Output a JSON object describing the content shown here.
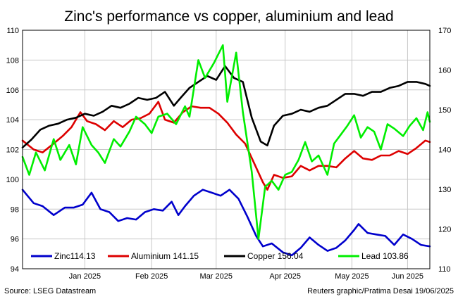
{
  "chart_data": {
    "type": "line",
    "title": "Zinc's performance vs copper, aluminium and lead",
    "xlabel": "",
    "ylabel": "",
    "y_left_ticks": [
      94,
      96,
      98,
      100,
      102,
      104,
      106,
      108,
      110
    ],
    "y_right_ticks": [
      110,
      120,
      130,
      140,
      150,
      160,
      170
    ],
    "ylim_left": [
      94,
      110
    ],
    "ylim_right": [
      110,
      170
    ],
    "x_start": "2024-12-18",
    "x_end": "2025-06-19",
    "x_ticks": [
      {
        "label": "Jan 2025",
        "date": "2025-01-15"
      },
      {
        "label": "Feb 2025",
        "date": "2025-02-14"
      },
      {
        "label": "Mar 2025",
        "date": "2025-03-15"
      },
      {
        "label": "Apr 2025",
        "date": "2025-04-15"
      },
      {
        "label": "May 2025",
        "date": "2025-05-15"
      },
      {
        "label": "Jun 2025",
        "date": "2025-06-09"
      }
    ],
    "grid": true,
    "legend_position": "bottom",
    "series": [
      {
        "name": "Zinc114.13",
        "axis": "left",
        "color": "#0000cc",
        "points": [
          [
            "2024-12-18",
            99.3
          ],
          [
            "2024-12-23",
            98.4
          ],
          [
            "2024-12-27",
            98.2
          ],
          [
            "2025-01-01",
            97.6
          ],
          [
            "2025-01-06",
            98.1
          ],
          [
            "2025-01-10",
            98.1
          ],
          [
            "2025-01-14",
            98.3
          ],
          [
            "2025-01-18",
            99.1
          ],
          [
            "2025-01-22",
            98.0
          ],
          [
            "2025-01-26",
            97.8
          ],
          [
            "2025-01-30",
            97.2
          ],
          [
            "2025-02-03",
            97.4
          ],
          [
            "2025-02-07",
            97.3
          ],
          [
            "2025-02-11",
            97.8
          ],
          [
            "2025-02-15",
            98.0
          ],
          [
            "2025-02-19",
            97.9
          ],
          [
            "2025-02-23",
            98.5
          ],
          [
            "2025-02-26",
            97.6
          ],
          [
            "2025-03-01",
            98.2
          ],
          [
            "2025-03-05",
            98.9
          ],
          [
            "2025-03-09",
            99.3
          ],
          [
            "2025-03-13",
            99.1
          ],
          [
            "2025-03-17",
            98.9
          ],
          [
            "2025-03-21",
            99.3
          ],
          [
            "2025-03-25",
            98.7
          ],
          [
            "2025-03-29",
            97.5
          ],
          [
            "2025-04-02",
            96.2
          ],
          [
            "2025-04-05",
            95.5
          ],
          [
            "2025-04-09",
            95.7
          ],
          [
            "2025-04-14",
            95.1
          ],
          [
            "2025-04-18",
            94.9
          ],
          [
            "2025-04-22",
            95.4
          ],
          [
            "2025-04-26",
            96.1
          ],
          [
            "2025-04-30",
            95.6
          ],
          [
            "2025-05-04",
            95.2
          ],
          [
            "2025-05-08",
            95.4
          ],
          [
            "2025-05-12",
            95.9
          ],
          [
            "2025-05-16",
            96.6
          ],
          [
            "2025-05-18",
            97.0
          ],
          [
            "2025-05-22",
            96.4
          ],
          [
            "2025-05-26",
            96.3
          ],
          [
            "2025-05-30",
            96.2
          ],
          [
            "2025-06-03",
            95.6
          ],
          [
            "2025-06-07",
            96.3
          ],
          [
            "2025-06-11",
            96.0
          ],
          [
            "2025-06-15",
            95.6
          ],
          [
            "2025-06-19",
            95.5
          ]
        ]
      },
      {
        "name": "Aluminium 141.15",
        "axis": "left",
        "color": "#dd0000",
        "points": [
          [
            "2024-12-18",
            102.6
          ],
          [
            "2024-12-23",
            102.0
          ],
          [
            "2024-12-27",
            101.8
          ],
          [
            "2025-01-01",
            102.4
          ],
          [
            "2025-01-05",
            102.9
          ],
          [
            "2025-01-09",
            103.5
          ],
          [
            "2025-01-13",
            104.5
          ],
          [
            "2025-01-16",
            103.9
          ],
          [
            "2025-01-20",
            103.7
          ],
          [
            "2025-01-24",
            103.3
          ],
          [
            "2025-01-28",
            103.9
          ],
          [
            "2025-02-01",
            103.5
          ],
          [
            "2025-02-05",
            104.0
          ],
          [
            "2025-02-09",
            104.1
          ],
          [
            "2025-02-13",
            104.4
          ],
          [
            "2025-02-17",
            105.2
          ],
          [
            "2025-02-20",
            104.0
          ],
          [
            "2025-02-24",
            103.8
          ],
          [
            "2025-02-28",
            104.5
          ],
          [
            "2025-03-04",
            104.9
          ],
          [
            "2025-03-08",
            104.8
          ],
          [
            "2025-03-12",
            104.8
          ],
          [
            "2025-03-16",
            104.4
          ],
          [
            "2025-03-20",
            103.8
          ],
          [
            "2025-03-24",
            103.0
          ],
          [
            "2025-03-28",
            102.4
          ],
          [
            "2025-04-01",
            101.1
          ],
          [
            "2025-04-05",
            99.8
          ],
          [
            "2025-04-07",
            99.3
          ],
          [
            "2025-04-10",
            100.3
          ],
          [
            "2025-04-14",
            100.1
          ],
          [
            "2025-04-18",
            100.2
          ],
          [
            "2025-04-22",
            100.9
          ],
          [
            "2025-04-26",
            100.6
          ],
          [
            "2025-04-30",
            100.9
          ],
          [
            "2025-05-04",
            100.9
          ],
          [
            "2025-05-08",
            100.8
          ],
          [
            "2025-05-12",
            101.4
          ],
          [
            "2025-05-16",
            101.9
          ],
          [
            "2025-05-20",
            101.4
          ],
          [
            "2025-05-24",
            101.3
          ],
          [
            "2025-05-28",
            101.6
          ],
          [
            "2025-06-01",
            101.6
          ],
          [
            "2025-06-05",
            101.9
          ],
          [
            "2025-06-09",
            101.7
          ],
          [
            "2025-06-13",
            102.1
          ],
          [
            "2025-06-17",
            102.6
          ],
          [
            "2025-06-19",
            102.5
          ]
        ]
      },
      {
        "name": "Copper 156.04",
        "axis": "right",
        "color": "#000000",
        "points": [
          [
            "2024-12-18",
            140.5
          ],
          [
            "2024-12-22",
            142.5
          ],
          [
            "2024-12-26",
            145.0
          ],
          [
            "2024-12-30",
            146.0
          ],
          [
            "2025-01-03",
            146.5
          ],
          [
            "2025-01-07",
            147.5
          ],
          [
            "2025-01-11",
            148.0
          ],
          [
            "2025-01-15",
            149.0
          ],
          [
            "2025-01-19",
            148.5
          ],
          [
            "2025-01-23",
            149.5
          ],
          [
            "2025-01-27",
            151.0
          ],
          [
            "2025-01-31",
            150.5
          ],
          [
            "2025-02-04",
            151.5
          ],
          [
            "2025-02-08",
            153.0
          ],
          [
            "2025-02-12",
            152.5
          ],
          [
            "2025-02-16",
            153.0
          ],
          [
            "2025-02-20",
            154.5
          ],
          [
            "2025-02-24",
            151.0
          ],
          [
            "2025-02-27",
            153.0
          ],
          [
            "2025-03-03",
            155.5
          ],
          [
            "2025-03-07",
            157.0
          ],
          [
            "2025-03-11",
            158.5
          ],
          [
            "2025-03-15",
            157.5
          ],
          [
            "2025-03-19",
            161.0
          ],
          [
            "2025-03-23",
            158.0
          ],
          [
            "2025-03-27",
            157.0
          ],
          [
            "2025-03-31",
            148.0
          ],
          [
            "2025-04-04",
            142.0
          ],
          [
            "2025-04-07",
            141.0
          ],
          [
            "2025-04-10",
            146.0
          ],
          [
            "2025-04-14",
            148.5
          ],
          [
            "2025-04-18",
            149.0
          ],
          [
            "2025-04-22",
            150.0
          ],
          [
            "2025-04-26",
            149.5
          ],
          [
            "2025-04-30",
            150.5
          ],
          [
            "2025-05-04",
            151.0
          ],
          [
            "2025-05-08",
            152.5
          ],
          [
            "2025-05-12",
            154.0
          ],
          [
            "2025-05-16",
            154.0
          ],
          [
            "2025-05-20",
            153.5
          ],
          [
            "2025-05-24",
            154.5
          ],
          [
            "2025-05-28",
            154.5
          ],
          [
            "2025-06-01",
            155.5
          ],
          [
            "2025-06-05",
            156.0
          ],
          [
            "2025-06-09",
            157.0
          ],
          [
            "2025-06-13",
            157.0
          ],
          [
            "2025-06-17",
            156.5
          ],
          [
            "2025-06-19",
            156.0
          ]
        ]
      },
      {
        "name": "Lead 103.86",
        "axis": "left",
        "color": "#00ee00",
        "points": [
          [
            "2024-12-18",
            101.5
          ],
          [
            "2024-12-21",
            100.3
          ],
          [
            "2024-12-24",
            101.8
          ],
          [
            "2024-12-28",
            100.6
          ],
          [
            "2025-01-01",
            102.7
          ],
          [
            "2025-01-04",
            101.3
          ],
          [
            "2025-01-08",
            102.3
          ],
          [
            "2025-01-11",
            101.0
          ],
          [
            "2025-01-14",
            103.5
          ],
          [
            "2025-01-18",
            102.3
          ],
          [
            "2025-01-21",
            101.8
          ],
          [
            "2025-01-24",
            101.1
          ],
          [
            "2025-01-28",
            102.7
          ],
          [
            "2025-01-31",
            102.2
          ],
          [
            "2025-02-04",
            103.2
          ],
          [
            "2025-02-07",
            104.2
          ],
          [
            "2025-02-11",
            103.7
          ],
          [
            "2025-02-14",
            103.1
          ],
          [
            "2025-02-17",
            104.2
          ],
          [
            "2025-02-21",
            104.4
          ],
          [
            "2025-02-25",
            103.7
          ],
          [
            "2025-03-01",
            104.9
          ],
          [
            "2025-03-03",
            104.2
          ],
          [
            "2025-03-07",
            108.0
          ],
          [
            "2025-03-10",
            106.8
          ],
          [
            "2025-03-14",
            107.8
          ],
          [
            "2025-03-18",
            109.0
          ],
          [
            "2025-03-20",
            105.2
          ],
          [
            "2025-03-24",
            108.5
          ],
          [
            "2025-03-27",
            104.5
          ],
          [
            "2025-03-31",
            100.5
          ],
          [
            "2025-04-03",
            96.0
          ],
          [
            "2025-04-06",
            99.5
          ],
          [
            "2025-04-09",
            99.9
          ],
          [
            "2025-04-12",
            99.3
          ],
          [
            "2025-04-15",
            100.3
          ],
          [
            "2025-04-18",
            100.5
          ],
          [
            "2025-04-21",
            101.3
          ],
          [
            "2025-04-24",
            102.5
          ],
          [
            "2025-04-27",
            101.2
          ],
          [
            "2025-04-30",
            101.6
          ],
          [
            "2025-05-04",
            100.3
          ],
          [
            "2025-05-07",
            102.4
          ],
          [
            "2025-05-10",
            103.0
          ],
          [
            "2025-05-13",
            103.6
          ],
          [
            "2025-05-16",
            104.3
          ],
          [
            "2025-05-19",
            102.8
          ],
          [
            "2025-05-22",
            103.5
          ],
          [
            "2025-05-25",
            103.2
          ],
          [
            "2025-05-28",
            102.0
          ],
          [
            "2025-05-31",
            103.7
          ],
          [
            "2025-06-03",
            103.4
          ],
          [
            "2025-06-07",
            102.9
          ],
          [
            "2025-06-10",
            103.6
          ],
          [
            "2025-06-13",
            104.1
          ],
          [
            "2025-06-16",
            103.3
          ],
          [
            "2025-06-18",
            104.5
          ],
          [
            "2025-06-19",
            103.86
          ]
        ]
      }
    ]
  },
  "footer": {
    "source": "Source: LSEG Datastream",
    "credit": "Reuters graphic/Pratima Desai 19/06/2025"
  }
}
